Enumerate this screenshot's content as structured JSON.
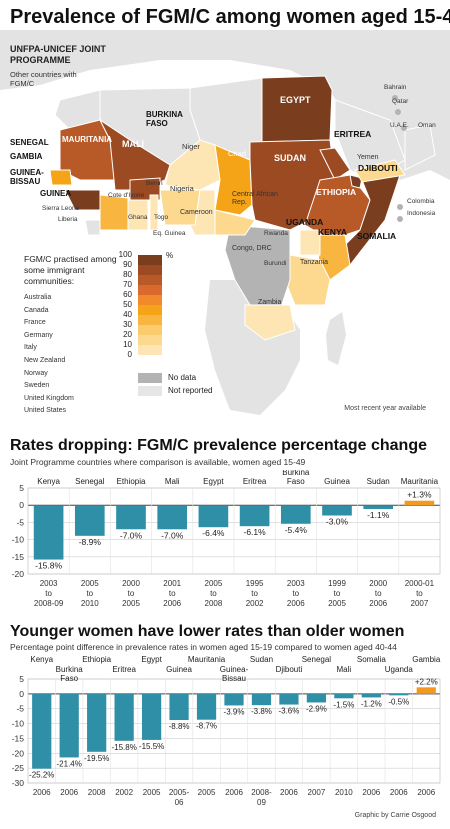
{
  "main_title": "Prevalence of FGM/C among women aged 15-49",
  "map": {
    "programme_title": "UNFPA-UNICEF JOINT PROGRAMME",
    "other_countries_heading": "Other countries with FGM/C",
    "legend_heading": "FGM/C practised among some immigrant communities:",
    "immigrant_countries": [
      "Australia",
      "Canada",
      "France",
      "Germany",
      "Italy",
      "New Zealand",
      "Norway",
      "Sweden",
      "United Kingdom",
      "United States"
    ],
    "scale_values": [
      "100",
      "90",
      "80",
      "70",
      "60",
      "50",
      "40",
      "30",
      "20",
      "10",
      "0"
    ],
    "scale_colors": [
      "#7a3e1e",
      "#9b4a22",
      "#b85a28",
      "#d9692c",
      "#f08a2a",
      "#f5a418",
      "#f8b640",
      "#fbcb6e",
      "#fcd98e",
      "#fde6b4"
    ],
    "scale_unit": "%",
    "no_data_label": "No data",
    "not_reported_label": "Not reported",
    "no_data_color": "#b3b3b3",
    "not_reported_color": "#e6e6e6",
    "recent_note": "Most recent year available",
    "country_labels": {
      "egypt": "EGYPT",
      "mauritania": "MAURITANIA",
      "mali": "MALI",
      "burkina": "BURKINA FASO",
      "niger": "Niger",
      "chad": "Chad",
      "sudan": "SUDAN",
      "eritrea": "ERITREA",
      "djibouti": "DJIBOUTI",
      "ethiopia": "ETHIOPIA",
      "somalia": "SOMALIA",
      "kenya": "KENYA",
      "uganda": "UGANDA",
      "tanzania": "Tanzania",
      "zambia": "Zambia",
      "congo": "Congo, DRC",
      "rwanda": "Rwanda",
      "burundi": "Burundi",
      "car": "Central African Rep.",
      "cameroon": "Cameroon",
      "nigeria": "Nigeria",
      "benin": "Benin",
      "togo": "Togo",
      "ghana": "Ghana",
      "eq_guinea": "Eq. Guinea",
      "cote": "Cote d'Ivoire",
      "liberia": "Liberia",
      "sierra": "Sierra Leone",
      "guinea": "GUINEA",
      "guinea_bissau": "GUINEA- BISSAU",
      "gambia": "GAMBIA",
      "senegal": "SENEGAL",
      "yemen": "Yemen",
      "oman": "Oman",
      "uae": "U.A.E.",
      "qatar": "Qatar",
      "bahrain": "Bahrain",
      "colombia": "Colombia",
      "indonesia": "Indonesia"
    }
  },
  "chart1_title": "Rates dropping: FGM/C prevalence percentage change",
  "chart1_subtitle": "Joint Programme countries where comparison is available, women aged 15-49",
  "chart2_title": "Younger women have lower rates than older women",
  "chart2_subtitle": "Percentage point difference in prevalence rates in women aged 15-19 compared to women aged 40-44",
  "credit": "Graphic by Carrie Osgood",
  "chart_data": [
    {
      "type": "bar",
      "categories": [
        "Kenya",
        "Senegal",
        "Ethiopia",
        "Mali",
        "Egypt",
        "Eritrea",
        "Burkina Faso",
        "Guinea",
        "Sudan",
        "Mauritania"
      ],
      "values": [
        -15.8,
        -8.9,
        -7.0,
        -7.0,
        -6.4,
        -6.1,
        -5.4,
        -3.0,
        -1.1,
        1.3
      ],
      "value_labels": [
        "-15.8%",
        "-8.9%",
        "-7.0%",
        "-7.0%",
        "-6.4%",
        "-6.1%",
        "-5.4%",
        "-3.0%",
        "-1.1%",
        "+1.3%"
      ],
      "periods": [
        [
          "2003",
          "to",
          "2008-09"
        ],
        [
          "2005",
          "to",
          "2010"
        ],
        [
          "2000",
          "to",
          "2005"
        ],
        [
          "2001",
          "to",
          "2006"
        ],
        [
          "2005",
          "to",
          "2008"
        ],
        [
          "1995",
          "to",
          "2002"
        ],
        [
          "2003",
          "to",
          "2006"
        ],
        [
          "1999",
          "to",
          "2005"
        ],
        [
          "2000",
          "to",
          "2006"
        ],
        [
          "2000-01",
          "to",
          "2007"
        ]
      ],
      "yticks": [
        "5",
        "0",
        "-5",
        "-10",
        "-15",
        "-20"
      ],
      "ylim": [
        -20,
        5
      ],
      "negative_color": "#2f8fa7",
      "positive_color": "#f39a1e",
      "grid": true
    },
    {
      "type": "bar",
      "categories": [
        "Kenya",
        "Burkina Faso",
        "Ethiopia",
        "Eritrea",
        "Egypt",
        "Guinea",
        "Mauritania",
        "Guinea-Bissau",
        "Sudan",
        "Djibouti",
        "Senegal",
        "Mali",
        "Somalia",
        "Uganda",
        "Gambia"
      ],
      "values": [
        -25.2,
        -21.4,
        -19.5,
        -15.8,
        -15.5,
        -8.8,
        -8.7,
        -3.9,
        -3.8,
        -3.6,
        -2.9,
        -1.5,
        -1.2,
        -0.5,
        2.2
      ],
      "value_labels": [
        "-25.2%",
        "-21.4%",
        "-19.5%",
        "-15.8%",
        "-15.5%",
        "-8.8%",
        "-8.7%",
        "-3.9%",
        "-3.8%",
        "-3.6%",
        "-2.9%",
        "-1.5%",
        "-1.2%",
        "-0.5%",
        "+2.2%"
      ],
      "years": [
        [
          "2006"
        ],
        [
          "2006"
        ],
        [
          "2008"
        ],
        [
          "2002"
        ],
        [
          "2005"
        ],
        [
          "2005-",
          "06"
        ],
        [
          "2005"
        ],
        [
          "2006"
        ],
        [
          "2008-",
          "09"
        ],
        [
          "2006"
        ],
        [
          "2007"
        ],
        [
          "2010"
        ],
        [
          "2006"
        ],
        [
          "2006"
        ],
        [
          "2006"
        ]
      ],
      "yticks": [
        "5",
        "0",
        "-5",
        "-10",
        "-15",
        "-20",
        "-25",
        "-30"
      ],
      "ylim": [
        -30,
        5
      ],
      "negative_color": "#2f8fa7",
      "positive_color": "#f39a1e",
      "grid": true
    }
  ]
}
